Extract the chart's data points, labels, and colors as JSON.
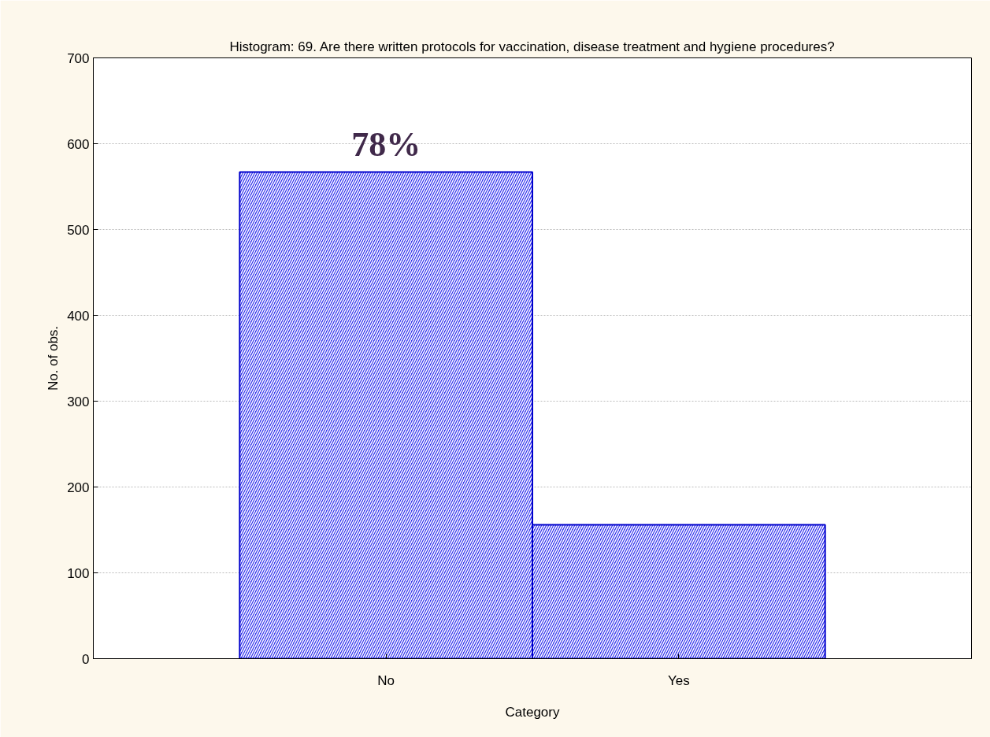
{
  "chart_data": {
    "type": "bar",
    "title": "Histogram: 69. Are there written protocols for vaccination, disease treatment and hygiene procedures?",
    "xlabel": "Category",
    "ylabel": "No. of obs.",
    "categories": [
      "No",
      "Yes"
    ],
    "values": [
      567,
      156
    ],
    "color": "#3333ee",
    "ylim": [
      0,
      700
    ],
    "yticks": [
      0,
      100,
      200,
      300,
      400,
      500,
      600,
      700
    ],
    "grid": "y",
    "annotations": [
      {
        "text": "78%",
        "x": "No",
        "y": 567
      }
    ]
  }
}
